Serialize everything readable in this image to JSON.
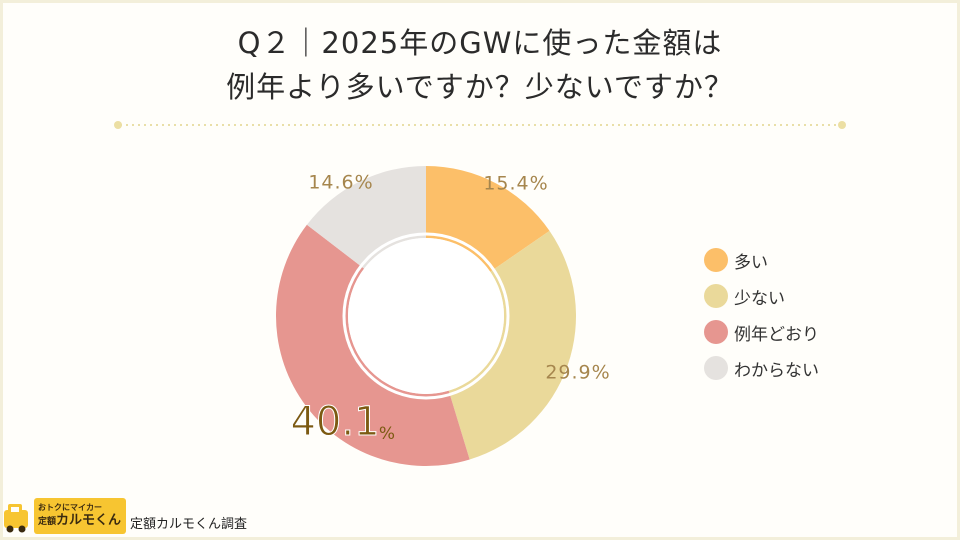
{
  "title": {
    "line1": "Q２｜2025年のGWに使った金額は",
    "line2": "例年より多いですか？少ないですか？"
  },
  "chart_data": {
    "type": "pie",
    "categories": [
      "多い",
      "少ない",
      "例年どおり",
      "わからない"
    ],
    "values": [
      15.4,
      29.9,
      40.1,
      14.6
    ],
    "value_labels": [
      "15.4%",
      "29.9%",
      "40.1",
      "14.6%"
    ],
    "highlight_unit": "%",
    "colors": [
      "#fcbf69",
      "#ead99a",
      "#e69690",
      "#e5e2df"
    ],
    "label_color": "#a6864d",
    "highlight_color": "#7c5a12",
    "donut": true,
    "legend_position": "right"
  },
  "legend": {
    "items": [
      {
        "label": "多い",
        "color": "#fcbf69"
      },
      {
        "label": "少ない",
        "color": "#ead99a"
      },
      {
        "label": "例年どおり",
        "color": "#e69690"
      },
      {
        "label": "わからない",
        "color": "#e5e2df"
      }
    ]
  },
  "brand": {
    "tagline": "おトクにマイカー",
    "prefix": "定額",
    "name": "カルモくん",
    "source": "定額カルモくん調査",
    "color": "#f7c531"
  }
}
